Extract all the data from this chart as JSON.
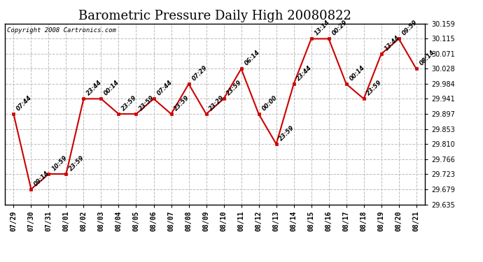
{
  "title": "Barometric Pressure Daily High 20080822",
  "copyright": "Copyright 2008 Cartronics.com",
  "x_labels": [
    "07/29",
    "07/30",
    "07/31",
    "08/01",
    "08/02",
    "08/03",
    "08/04",
    "08/05",
    "08/06",
    "08/07",
    "08/08",
    "08/09",
    "08/10",
    "08/11",
    "08/12",
    "08/13",
    "08/14",
    "08/15",
    "08/16",
    "08/17",
    "08/18",
    "08/19",
    "08/20",
    "08/21"
  ],
  "y_values": [
    29.897,
    29.679,
    29.723,
    29.723,
    29.941,
    29.941,
    29.897,
    29.897,
    29.941,
    29.897,
    29.984,
    29.897,
    29.941,
    30.028,
    29.897,
    29.81,
    29.984,
    30.115,
    30.115,
    29.984,
    29.941,
    30.071,
    30.115,
    30.028
  ],
  "point_labels": [
    "07:44",
    "09:14",
    "10:59",
    "23:59",
    "23:44",
    "00:14",
    "23:59",
    "23:59",
    "07:44",
    "23:59",
    "07:29",
    "23:29",
    "23:59",
    "06:14",
    "00:00",
    "23:59",
    "23:44",
    "13:14",
    "00:29",
    "00:14",
    "23:59",
    "13:44",
    "09:59",
    "08:14"
  ],
  "line_color": "#cc0000",
  "marker_color": "#cc0000",
  "background_color": "#ffffff",
  "grid_color": "#bbbbbb",
  "title_fontsize": 13,
  "y_min": 29.635,
  "y_max": 30.159,
  "y_ticks": [
    29.635,
    29.679,
    29.723,
    29.766,
    29.81,
    29.853,
    29.897,
    29.941,
    29.984,
    30.028,
    30.071,
    30.115,
    30.159
  ]
}
